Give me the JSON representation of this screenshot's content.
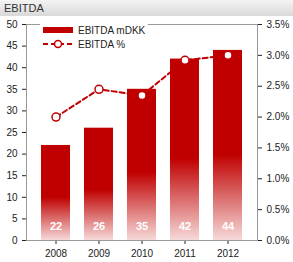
{
  "chart_data": {
    "type": "bar",
    "title": "EBITDA",
    "categories": [
      "2008",
      "2009",
      "2010",
      "2011",
      "2012"
    ],
    "series": [
      {
        "name": "EBITDA mDKK",
        "type": "bar",
        "color": "#c00000",
        "data_labels": true,
        "values": [
          22,
          26,
          35,
          42,
          44
        ]
      },
      {
        "name": "EBITDA %",
        "type": "line",
        "color": "#c00000",
        "axis": "y2",
        "marker": "circle",
        "line_style": "dashed",
        "values": [
          2.0,
          2.45,
          2.35,
          2.92,
          3.0
        ]
      }
    ],
    "ylim": [
      0,
      50
    ],
    "yticks": [
      0,
      5,
      10,
      15,
      20,
      25,
      30,
      35,
      40,
      45,
      50
    ],
    "y2lim": [
      0,
      3.5
    ],
    "y2ticks": [
      {
        "value": 0,
        "label": "0.0%"
      },
      {
        "value": 0.5,
        "label": "0.5%"
      },
      {
        "value": 1.0,
        "label": "1.0%"
      },
      {
        "value": 1.5,
        "label": "1.5%"
      },
      {
        "value": 2.0,
        "label": "2.0%"
      },
      {
        "value": 2.5,
        "label": "2.5%"
      },
      {
        "value": 3.0,
        "label": "3.0%"
      },
      {
        "value": 3.5,
        "label": "3.5%"
      }
    ],
    "grid": false,
    "legend": "upper left"
  }
}
